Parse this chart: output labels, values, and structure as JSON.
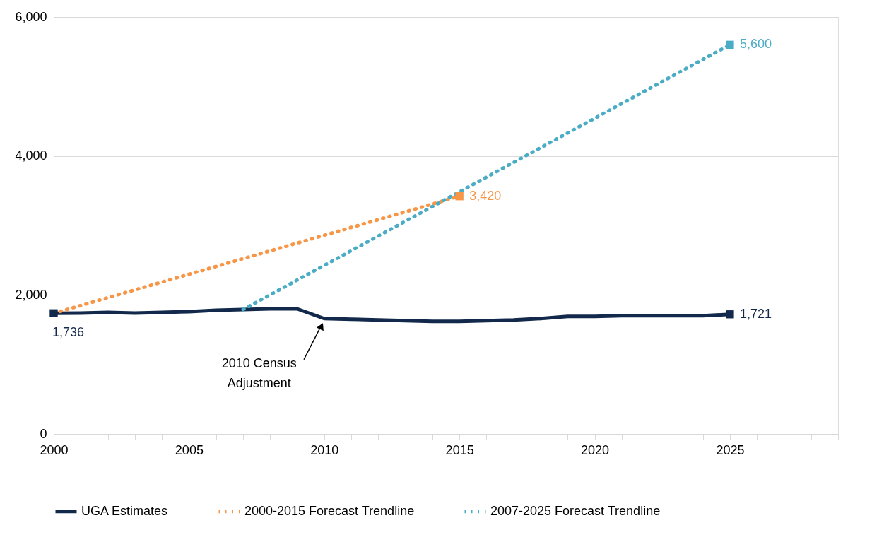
{
  "chart_data": {
    "type": "line",
    "xlim": [
      2000,
      2029
    ],
    "ylim": [
      0,
      6000
    ],
    "xticks": [
      2000,
      {
        "value": 2001,
        "label": null
      },
      {
        "value": 2002,
        "label": null
      },
      {
        "value": 2003,
        "label": null
      },
      {
        "value": 2004,
        "label": null
      },
      2005,
      {
        "value": 2006,
        "label": null
      },
      {
        "value": 2007,
        "label": null
      },
      {
        "value": 2008,
        "label": null
      },
      {
        "value": 2009,
        "label": null
      },
      2010,
      {
        "value": 2011,
        "label": null
      },
      {
        "value": 2012,
        "label": null
      },
      {
        "value": 2013,
        "label": null
      },
      {
        "value": 2014,
        "label": null
      },
      2015,
      {
        "value": 2016,
        "label": null
      },
      {
        "value": 2017,
        "label": null
      },
      {
        "value": 2018,
        "label": null
      },
      {
        "value": 2019,
        "label": null
      },
      2020,
      {
        "value": 2021,
        "label": null
      },
      {
        "value": 2022,
        "label": null
      },
      {
        "value": 2023,
        "label": null
      },
      {
        "value": 2024,
        "label": null
      },
      2025,
      {
        "value": 2026,
        "label": null
      },
      {
        "value": 2027,
        "label": null
      },
      {
        "value": 2028,
        "label": null
      },
      {
        "value": 2029,
        "label": null
      }
    ],
    "yticks": [
      0,
      {
        "value": 2000,
        "label": "2,000"
      },
      {
        "value": 4000,
        "label": "4,000"
      },
      {
        "value": 6000,
        "label": "6,000"
      }
    ],
    "grid": "y",
    "legend": "bottom",
    "series": [
      {
        "name": "UGA Estimates",
        "color": "#13294b",
        "line_style": "solid",
        "x": [
          2000,
          2001,
          2002,
          2003,
          2004,
          2005,
          2006,
          2007,
          2008,
          2009,
          2010,
          2011,
          2012,
          2013,
          2014,
          2015,
          2016,
          2017,
          2018,
          2019,
          2020,
          2021,
          2022,
          2023,
          2024,
          2025
        ],
        "values": [
          1736,
          1740,
          1750,
          1740,
          1750,
          1760,
          1780,
          1790,
          1800,
          1800,
          1660,
          1650,
          1640,
          1630,
          1620,
          1620,
          1630,
          1640,
          1660,
          1690,
          1690,
          1700,
          1700,
          1700,
          1700,
          1721
        ],
        "value_labels": [
          "1,736",
          null,
          null,
          null,
          null,
          null,
          null,
          null,
          null,
          null,
          null,
          null,
          null,
          null,
          null,
          null,
          null,
          null,
          null,
          null,
          null,
          null,
          null,
          null,
          null,
          "1,721"
        ]
      },
      {
        "name": "2000-2015 Forecast Trendline",
        "color": "#f79646",
        "line_style": "dotted",
        "x": [
          2000,
          2015
        ],
        "values": [
          1736,
          3420
        ],
        "value_labels": [
          null,
          "3,420"
        ]
      },
      {
        "name": "2007-2025 Forecast Trendline",
        "color": "#4bacc6",
        "line_style": "dotted",
        "x": [
          2007,
          2025
        ],
        "values": [
          1790,
          5600
        ],
        "value_labels": [
          null,
          "5,600"
        ]
      }
    ],
    "annotations": [
      {
        "text": "2010 Census Adjustment",
        "x": 2010,
        "y": 1660
      }
    ]
  }
}
